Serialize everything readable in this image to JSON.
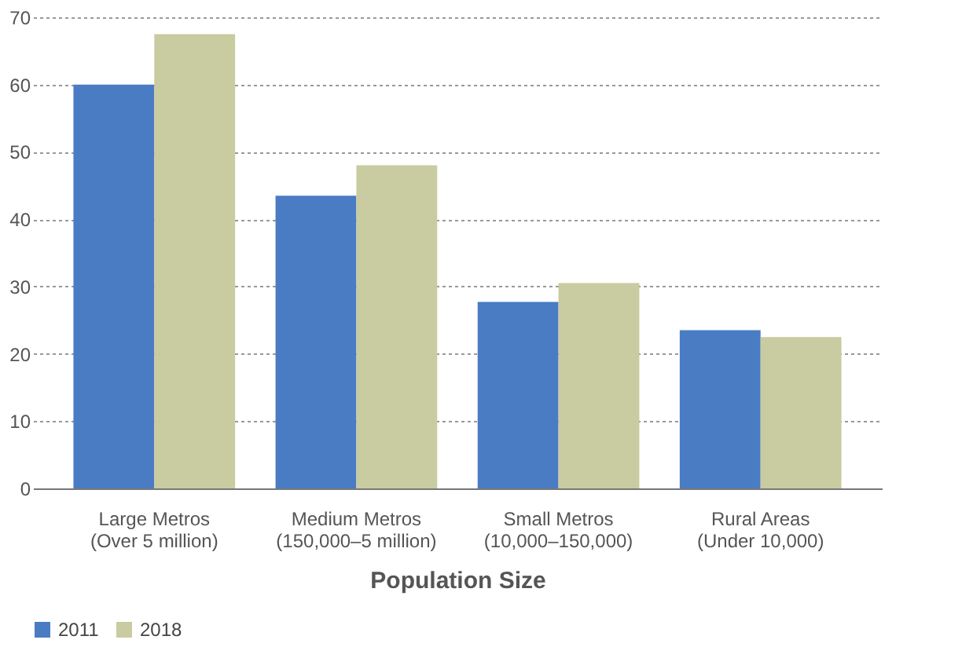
{
  "chart_data": {
    "type": "bar",
    "xlabel": "Population Size",
    "categories": [
      "Large Metros\n(Over 5 million)",
      "Medium Metros\n(150,000–5 million)",
      "Small Metros\n(10,000–150,000)",
      "Rural Areas\n(Under 10,000)"
    ],
    "series": [
      {
        "name": "2011",
        "color": "#4a7cc4",
        "values": [
          60,
          43.5,
          27.7,
          23.5
        ]
      },
      {
        "name": "2018",
        "color": "#c9cba0",
        "values": [
          67.5,
          48,
          30.5,
          22.5
        ]
      }
    ],
    "ylim": [
      0,
      70
    ],
    "yticks": [
      0,
      10,
      20,
      30,
      40,
      50,
      60,
      70
    ],
    "grid": "y",
    "legend": "bottom left"
  }
}
